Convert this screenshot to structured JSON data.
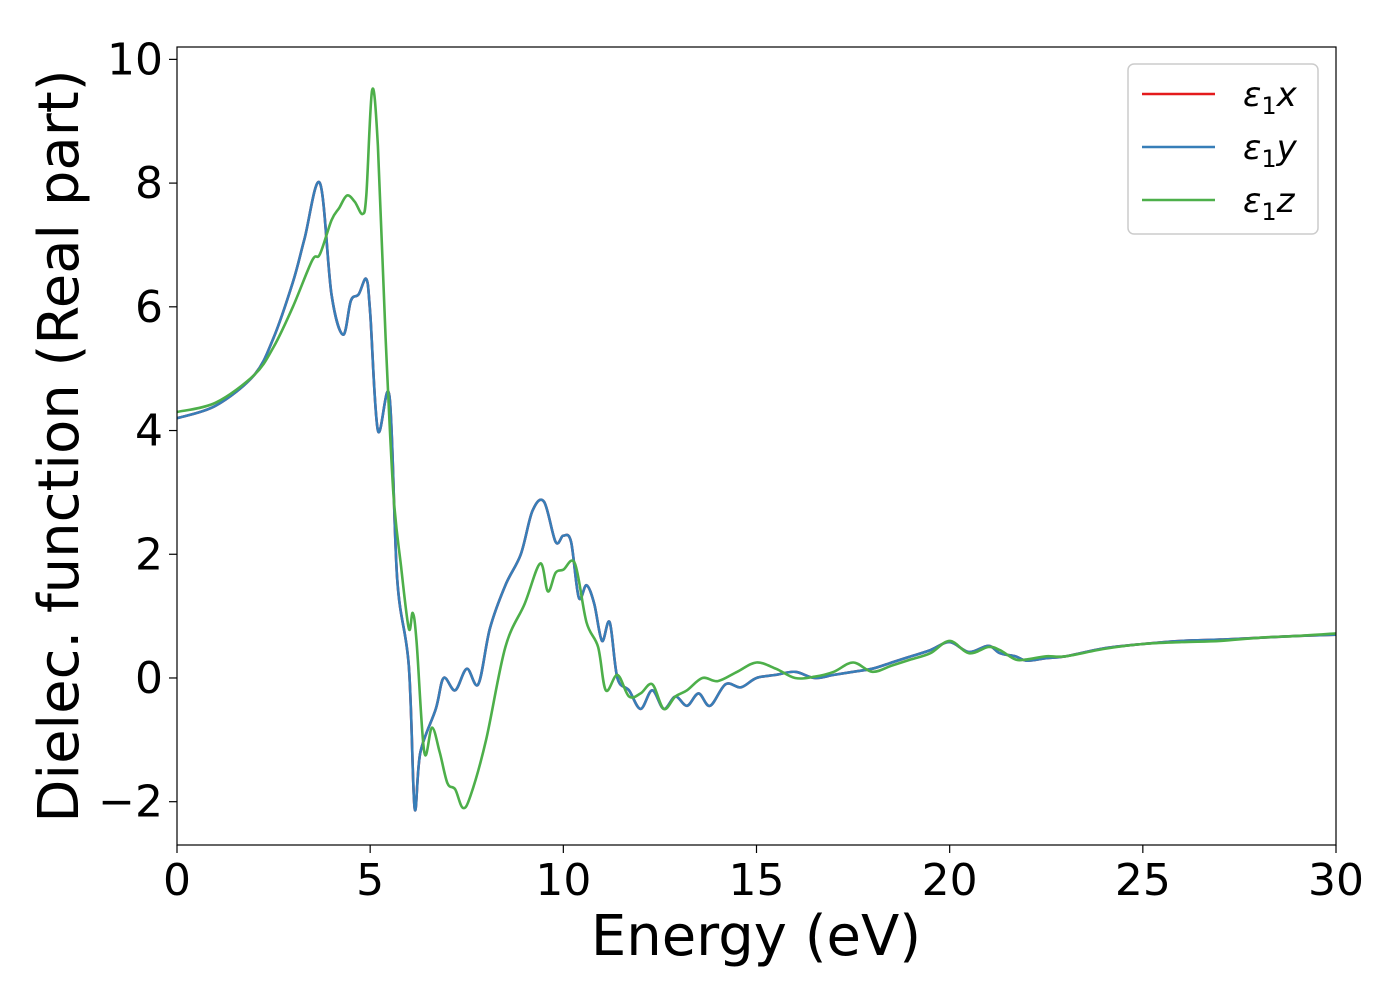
{
  "chart_data": {
    "type": "line",
    "title": "",
    "xlabel": "Energy (eV)",
    "ylabel": "Dielec. function (Real part)",
    "xlim": [
      0,
      30
    ],
    "ylim": [
      -2.7,
      10.2
    ],
    "xticks": [
      0,
      5,
      10,
      15,
      20,
      25,
      30
    ],
    "xtick_labels": [
      "0",
      "5",
      "10",
      "15",
      "20",
      "25",
      "30"
    ],
    "yticks": [
      -2,
      0,
      2,
      4,
      6,
      8,
      10
    ],
    "ytick_labels": [
      "−2",
      "0",
      "2",
      "4",
      "6",
      "8",
      "10"
    ],
    "grid": false,
    "legend_position": "top-right",
    "series": [
      {
        "name": "ε1x",
        "label_base": "ε",
        "label_sub": "1",
        "label_var": "x",
        "color": "#e41a1c",
        "x": [
          0,
          1,
          2,
          2.5,
          3,
          3.3,
          3.7,
          4.0,
          4.3,
          4.5,
          4.7,
          4.9,
          5.0,
          5.2,
          5.5,
          5.7,
          6.0,
          6.15,
          6.3,
          6.7,
          6.9,
          7.2,
          7.5,
          7.8,
          8.1,
          8.5,
          8.9,
          9.2,
          9.5,
          9.8,
          10.0,
          10.2,
          10.4,
          10.6,
          10.8,
          11.0,
          11.2,
          11.4,
          11.7,
          12.0,
          12.3,
          12.6,
          12.9,
          13.2,
          13.5,
          13.8,
          14.2,
          14.6,
          15.0,
          15.5,
          16.0,
          16.5,
          17.0,
          17.5,
          18.0,
          18.5,
          19.0,
          19.5,
          20.0,
          20.5,
          21.0,
          21.3,
          21.7,
          22.0,
          22.5,
          23.0,
          24.0,
          25.0,
          26.0,
          27.0,
          28.0,
          29.0,
          30.0
        ],
        "values": [
          4.2,
          4.4,
          4.9,
          5.5,
          6.4,
          7.1,
          8.0,
          6.2,
          5.55,
          6.1,
          6.2,
          6.45,
          5.9,
          4.0,
          4.55,
          1.6,
          0.2,
          -2.1,
          -1.2,
          -0.5,
          0.0,
          -0.2,
          0.15,
          -0.1,
          0.8,
          1.5,
          2.0,
          2.7,
          2.85,
          2.2,
          2.3,
          2.2,
          1.3,
          1.5,
          1.2,
          0.6,
          0.9,
          0.0,
          -0.2,
          -0.5,
          -0.2,
          -0.5,
          -0.3,
          -0.45,
          -0.25,
          -0.45,
          -0.1,
          -0.15,
          0.0,
          0.05,
          0.1,
          0.0,
          0.05,
          0.1,
          0.15,
          0.25,
          0.35,
          0.45,
          0.58,
          0.42,
          0.52,
          0.4,
          0.35,
          0.28,
          0.32,
          0.35,
          0.48,
          0.55,
          0.6,
          0.62,
          0.65,
          0.68,
          0.7
        ]
      },
      {
        "name": "ε1y",
        "label_base": "ε",
        "label_sub": "1",
        "label_var": "y",
        "color": "#377eb8",
        "x": [
          0,
          1,
          2,
          2.5,
          3,
          3.3,
          3.7,
          4.0,
          4.3,
          4.5,
          4.7,
          4.9,
          5.0,
          5.2,
          5.5,
          5.7,
          6.0,
          6.15,
          6.3,
          6.7,
          6.9,
          7.2,
          7.5,
          7.8,
          8.1,
          8.5,
          8.9,
          9.2,
          9.5,
          9.8,
          10.0,
          10.2,
          10.4,
          10.6,
          10.8,
          11.0,
          11.2,
          11.4,
          11.7,
          12.0,
          12.3,
          12.6,
          12.9,
          13.2,
          13.5,
          13.8,
          14.2,
          14.6,
          15.0,
          15.5,
          16.0,
          16.5,
          17.0,
          17.5,
          18.0,
          18.5,
          19.0,
          19.5,
          20.0,
          20.5,
          21.0,
          21.3,
          21.7,
          22.0,
          22.5,
          23.0,
          24.0,
          25.0,
          26.0,
          27.0,
          28.0,
          29.0,
          30.0
        ],
        "values": [
          4.2,
          4.4,
          4.9,
          5.5,
          6.4,
          7.1,
          8.0,
          6.2,
          5.55,
          6.1,
          6.2,
          6.45,
          5.9,
          4.0,
          4.55,
          1.6,
          0.2,
          -2.1,
          -1.2,
          -0.5,
          0.0,
          -0.2,
          0.15,
          -0.1,
          0.8,
          1.5,
          2.0,
          2.7,
          2.85,
          2.2,
          2.3,
          2.2,
          1.3,
          1.5,
          1.2,
          0.6,
          0.9,
          0.0,
          -0.2,
          -0.5,
          -0.2,
          -0.5,
          -0.3,
          -0.45,
          -0.25,
          -0.45,
          -0.1,
          -0.15,
          0.0,
          0.05,
          0.1,
          0.0,
          0.05,
          0.1,
          0.15,
          0.25,
          0.35,
          0.45,
          0.58,
          0.42,
          0.52,
          0.4,
          0.35,
          0.28,
          0.32,
          0.35,
          0.48,
          0.55,
          0.6,
          0.62,
          0.65,
          0.68,
          0.7
        ]
      },
      {
        "name": "ε1z",
        "label_base": "ε",
        "label_sub": "1",
        "label_var": "z",
        "color": "#4daf4a",
        "x": [
          0,
          1,
          2,
          2.5,
          3,
          3.5,
          3.7,
          4.0,
          4.2,
          4.4,
          4.6,
          4.8,
          4.9,
          5.05,
          5.2,
          5.4,
          5.6,
          5.8,
          6.0,
          6.1,
          6.2,
          6.4,
          6.6,
          6.8,
          7.0,
          7.2,
          7.4,
          7.6,
          8.0,
          8.5,
          9.0,
          9.4,
          9.6,
          9.8,
          10.0,
          10.3,
          10.6,
          10.9,
          11.1,
          11.4,
          11.7,
          12.0,
          12.3,
          12.6,
          12.9,
          13.2,
          13.6,
          14.0,
          14.5,
          15.0,
          15.5,
          16.0,
          16.5,
          17.0,
          17.5,
          18.0,
          18.5,
          19.0,
          19.5,
          20.0,
          20.5,
          21.0,
          21.3,
          21.7,
          22.0,
          22.5,
          23.0,
          24.0,
          25.0,
          26.0,
          27.0,
          28.0,
          29.0,
          30.0
        ],
        "values": [
          4.3,
          4.45,
          4.9,
          5.35,
          6.0,
          6.75,
          6.85,
          7.4,
          7.6,
          7.8,
          7.7,
          7.5,
          7.8,
          9.5,
          8.6,
          5.5,
          3.0,
          1.8,
          0.8,
          1.05,
          0.6,
          -1.2,
          -0.8,
          -1.2,
          -1.7,
          -1.8,
          -2.1,
          -1.9,
          -1.0,
          0.5,
          1.2,
          1.85,
          1.4,
          1.7,
          1.75,
          1.85,
          0.9,
          0.5,
          -0.2,
          0.05,
          -0.3,
          -0.25,
          -0.1,
          -0.5,
          -0.3,
          -0.2,
          0.0,
          -0.05,
          0.1,
          0.25,
          0.15,
          0.0,
          0.02,
          0.1,
          0.25,
          0.1,
          0.2,
          0.3,
          0.4,
          0.6,
          0.4,
          0.5,
          0.45,
          0.3,
          0.3,
          0.35,
          0.35,
          0.47,
          0.55,
          0.58,
          0.6,
          0.65,
          0.68,
          0.72
        ]
      }
    ]
  }
}
